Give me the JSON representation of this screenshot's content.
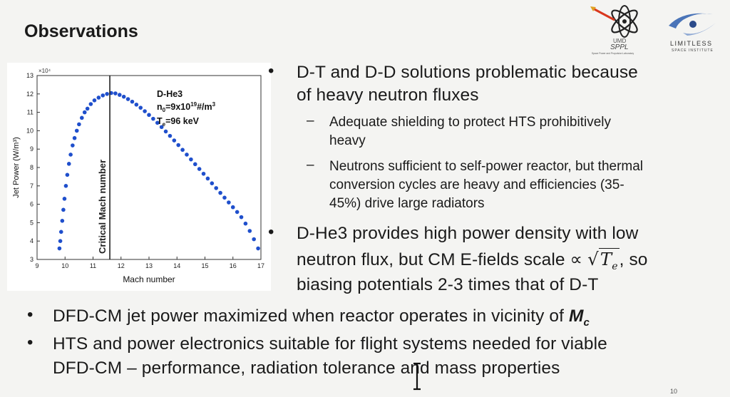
{
  "slide": {
    "title": "Observations",
    "page_number": "10"
  },
  "logos": {
    "sppl_line1": "UMD",
    "sppl_line2": "SPPL",
    "sppl_caption": "Space Power and Propulsion Laboratory",
    "lsi_line1": "LIMITLESS",
    "lsi_line2": "SPACE INSTITUTE"
  },
  "bullets": {
    "b1_line1": "D-T and D-D solutions problematic because",
    "b1_line2": "of heavy neutron fluxes",
    "sub1_line1": "Adequate shielding to protect HTS prohibitively",
    "sub1_line2": "heavy",
    "sub2_line1": "Neutrons sufficient to self-power reactor, but thermal",
    "sub2_line2": "conversion cycles  are heavy and efficiencies (35-",
    "sub2_line3": "45%) drive large radiators",
    "b2_line1": "D-He3 provides high power density with low",
    "b2_line2_pre": "neutron flux, but CM E-fields scale",
    "b2_prop": "∝",
    "b2_sqrt_var": "T",
    "b2_sqrt_sub": "e",
    "b2_line2_post": ", so",
    "b2_line3": "biasing potentials 2-3 times that of D-T",
    "b3_text": "DFD-CM jet power maximized when reactor operates in vicinity of ",
    "b3_M": "M",
    "b3_sub": "c",
    "b4_line1": "HTS and power electronics suitable for flight systems needed for viable",
    "b4_line2": "DFD-CM – performance, radiation tolerance and mass properties",
    "bullet_char": "•",
    "dash_char": "–"
  },
  "chart_data": {
    "type": "scatter",
    "xlabel": "Mach number",
    "ylabel": "Jet Power (W/m³)",
    "y_multiplier": "×10⁴",
    "xlim": [
      9,
      17
    ],
    "ylim": [
      3,
      13
    ],
    "xticks": [
      "9",
      "10",
      "11",
      "12",
      "13",
      "14",
      "15",
      "16",
      "17"
    ],
    "yticks": [
      "3",
      "4",
      "5",
      "6",
      "7",
      "8",
      "9",
      "10",
      "11",
      "12",
      "13"
    ],
    "critical_mach": 11.6,
    "critical_label": "Critical Mach number",
    "annot_line1": "D-He3",
    "annot_n_pre": "n",
    "annot_n_sub": "0",
    "annot_n_mid": "=9x10",
    "annot_n_sup": "19",
    "annot_n_post": "#/m",
    "annot_n_sup2": "3",
    "annot_T_pre": "T",
    "annot_T_sub": "e",
    "annot_T_post": "=96 keV",
    "series": [
      {
        "name": "D-He3 jet power",
        "color": "#1f4fcc",
        "points": [
          [
            9.8,
            3.6
          ],
          [
            9.83,
            4.0
          ],
          [
            9.86,
            4.5
          ],
          [
            9.9,
            5.1
          ],
          [
            9.94,
            5.7
          ],
          [
            9.98,
            6.3
          ],
          [
            10.03,
            7.0
          ],
          [
            10.08,
            7.6
          ],
          [
            10.14,
            8.2
          ],
          [
            10.2,
            8.7
          ],
          [
            10.27,
            9.2
          ],
          [
            10.34,
            9.6
          ],
          [
            10.42,
            10.0
          ],
          [
            10.5,
            10.35
          ],
          [
            10.6,
            10.7
          ],
          [
            10.7,
            11.0
          ],
          [
            10.8,
            11.2
          ],
          [
            10.92,
            11.45
          ],
          [
            11.05,
            11.65
          ],
          [
            11.2,
            11.8
          ],
          [
            11.35,
            11.92
          ],
          [
            11.5,
            12.0
          ],
          [
            11.65,
            12.05
          ],
          [
            11.8,
            12.03
          ],
          [
            11.95,
            11.95
          ],
          [
            12.1,
            11.85
          ],
          [
            12.25,
            11.72
          ],
          [
            12.4,
            11.58
          ],
          [
            12.55,
            11.42
          ],
          [
            12.7,
            11.25
          ],
          [
            12.85,
            11.06
          ],
          [
            13.0,
            10.86
          ],
          [
            13.15,
            10.65
          ],
          [
            13.3,
            10.43
          ],
          [
            13.45,
            10.2
          ],
          [
            13.6,
            9.96
          ],
          [
            13.75,
            9.72
          ],
          [
            13.9,
            9.47
          ],
          [
            14.05,
            9.22
          ],
          [
            14.2,
            8.96
          ],
          [
            14.35,
            8.7
          ],
          [
            14.5,
            8.44
          ],
          [
            14.65,
            8.18
          ],
          [
            14.8,
            7.92
          ],
          [
            14.95,
            7.66
          ],
          [
            15.1,
            7.4
          ],
          [
            15.25,
            7.14
          ],
          [
            15.4,
            6.88
          ],
          [
            15.55,
            6.62
          ],
          [
            15.7,
            6.36
          ],
          [
            15.85,
            6.1
          ],
          [
            16.0,
            5.84
          ],
          [
            16.15,
            5.58
          ],
          [
            16.3,
            5.3
          ],
          [
            16.45,
            4.95
          ],
          [
            16.6,
            4.55
          ],
          [
            16.75,
            4.1
          ],
          [
            16.9,
            3.6
          ]
        ]
      }
    ]
  }
}
